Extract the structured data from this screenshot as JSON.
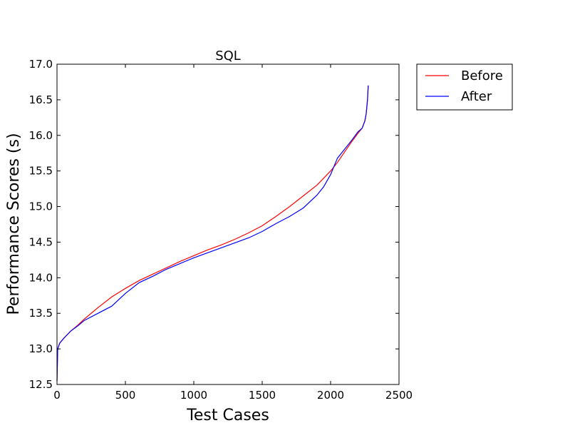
{
  "chart_data": {
    "type": "line",
    "title": "SQL",
    "xlabel": "Test Cases",
    "ylabel": "Performance Scores (s)",
    "xlim": [
      0,
      2500
    ],
    "ylim": [
      12.5,
      17.0
    ],
    "xticks": [
      0,
      500,
      1000,
      1500,
      2000,
      2500
    ],
    "xtick_labels": [
      "0",
      "500",
      "1000",
      "1500",
      "2000",
      "2500"
    ],
    "yticks": [
      12.5,
      13.0,
      13.5,
      14.0,
      14.5,
      15.0,
      15.5,
      16.0,
      16.5,
      17.0
    ],
    "ytick_labels": [
      "12.5",
      "13.0",
      "13.5",
      "14.0",
      "14.5",
      "15.0",
      "15.5",
      "16.0",
      "16.5",
      "17.0"
    ],
    "grid": false,
    "legend_position": "outside-top-right",
    "series": [
      {
        "name": "Before",
        "color": "#ff0000",
        "x": [
          0,
          5,
          20,
          50,
          100,
          150,
          200,
          300,
          400,
          500,
          600,
          700,
          800,
          900,
          1000,
          1100,
          1200,
          1300,
          1400,
          1500,
          1600,
          1700,
          1800,
          1900,
          2000,
          2050,
          2100,
          2150,
          2200,
          2230,
          2250,
          2260,
          2270,
          2275
        ],
        "y": [
          12.55,
          13.0,
          13.08,
          13.15,
          13.25,
          13.33,
          13.42,
          13.58,
          13.73,
          13.85,
          13.96,
          14.05,
          14.14,
          14.23,
          14.31,
          14.39,
          14.46,
          14.54,
          14.63,
          14.73,
          14.86,
          15.0,
          15.15,
          15.3,
          15.5,
          15.62,
          15.76,
          15.9,
          16.03,
          16.1,
          16.2,
          16.3,
          16.5,
          16.7
        ]
      },
      {
        "name": "After",
        "color": "#0000ff",
        "x": [
          0,
          5,
          20,
          50,
          100,
          150,
          200,
          300,
          400,
          500,
          600,
          700,
          800,
          900,
          1000,
          1100,
          1200,
          1300,
          1400,
          1500,
          1600,
          1700,
          1800,
          1900,
          1950,
          2000,
          2050,
          2100,
          2150,
          2200,
          2230,
          2250,
          2260,
          2270,
          2275
        ],
        "y": [
          12.55,
          13.0,
          13.08,
          13.15,
          13.25,
          13.32,
          13.4,
          13.5,
          13.6,
          13.78,
          13.93,
          14.02,
          14.12,
          14.2,
          14.28,
          14.35,
          14.42,
          14.49,
          14.56,
          14.65,
          14.76,
          14.86,
          14.98,
          15.16,
          15.28,
          15.45,
          15.68,
          15.8,
          15.92,
          16.05,
          16.1,
          16.2,
          16.3,
          16.5,
          16.7
        ]
      }
    ]
  }
}
